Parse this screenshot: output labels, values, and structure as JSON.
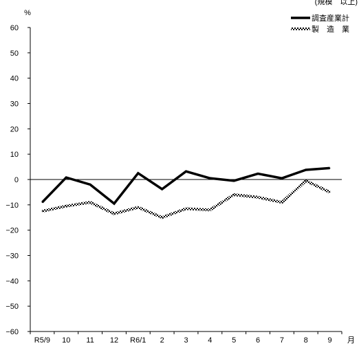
{
  "chart_data": {
    "type": "line",
    "corner_text": "(規模　以上)",
    "ylabel": "%",
    "xlabel": "月",
    "ylim": [
      -60,
      60
    ],
    "yticks": [
      60,
      50,
      40,
      30,
      20,
      10,
      0,
      -10,
      -20,
      -30,
      -40,
      -50,
      -60
    ],
    "categories": [
      "R5/9",
      "10",
      "11",
      "12",
      "R6/1",
      "2",
      "3",
      "4",
      "5",
      "6",
      "7",
      "8",
      "9"
    ],
    "series": [
      {
        "name": "調査産業計",
        "style": "thick-solid",
        "color": "#000000",
        "values": [
          -9,
          0.8,
          -2,
          -9.5,
          2.5,
          -3.8,
          3.2,
          0.5,
          -0.5,
          2.3,
          0.5,
          3.8,
          4.5
        ]
      },
      {
        "name": "製　造　業",
        "style": "hatched",
        "color": "#555555",
        "values": [
          -12.5,
          -10.5,
          -9,
          -13.5,
          -11,
          -15,
          -11.5,
          -12,
          -6,
          -7,
          -9,
          -0.5,
          -5
        ]
      }
    ],
    "legend_position": "top-right",
    "grid": false,
    "zero_line": true
  }
}
